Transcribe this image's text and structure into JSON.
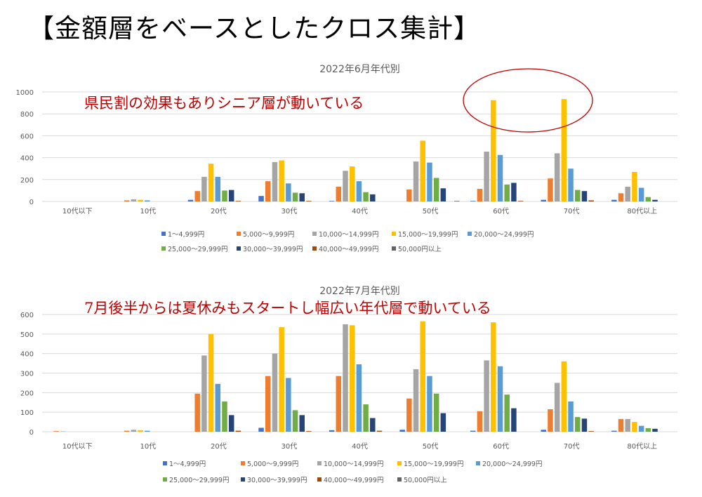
{
  "slide_title": "【金額層をベースとしたクロス集計】",
  "colors": [
    "#4472C4",
    "#ED7D31",
    "#A5A5A5",
    "#FFC000",
    "#5B9BD5",
    "#70AD47",
    "#264478",
    "#9E480E",
    "#636363"
  ],
  "annotation_color": "#C00000",
  "chart_data": [
    {
      "type": "bar",
      "title": "2022年6月年代別",
      "annotation": "県民割の効果もありシニア層が動いている",
      "highlight": "circle around 60代 and 70代 15,000〜19,999円 bars",
      "categories": [
        "10代以下",
        "10代",
        "20代",
        "30代",
        "40代",
        "50代",
        "60代",
        "70代",
        "80代以上"
      ],
      "ylim": [
        0,
        1000
      ],
      "yticks": [
        0,
        200,
        400,
        600,
        800,
        1000
      ],
      "grid": true,
      "legend": "bottom",
      "series": [
        {
          "name": "1〜4,999円",
          "values": [
            0,
            0,
            15,
            50,
            5,
            0,
            5,
            15,
            15
          ]
        },
        {
          "name": "5,000〜9,999円",
          "values": [
            0,
            10,
            95,
            185,
            135,
            110,
            115,
            210,
            75
          ]
        },
        {
          "name": "10,000〜14,999円",
          "values": [
            0,
            20,
            225,
            360,
            280,
            365,
            455,
            440,
            135
          ]
        },
        {
          "name": "15,000〜19,999円",
          "values": [
            0,
            15,
            345,
            375,
            320,
            555,
            925,
            935,
            270
          ]
        },
        {
          "name": "20,000〜24,999円",
          "values": [
            0,
            10,
            225,
            165,
            185,
            355,
            425,
            300,
            125
          ]
        },
        {
          "name": "25,000〜29,999円",
          "values": [
            0,
            0,
            100,
            80,
            85,
            215,
            155,
            105,
            40
          ]
        },
        {
          "name": "30,000〜39,999円",
          "values": [
            0,
            0,
            105,
            75,
            65,
            120,
            170,
            95,
            15
          ]
        },
        {
          "name": "40,000〜49,999円",
          "values": [
            0,
            0,
            5,
            5,
            0,
            0,
            5,
            10,
            0
          ]
        },
        {
          "name": "50,000円以上",
          "values": [
            0,
            0,
            0,
            0,
            0,
            5,
            0,
            0,
            0
          ]
        }
      ]
    },
    {
      "type": "bar",
      "title": "2022年7月年代別",
      "annotation": "7月後半からは夏休みもスタートし幅広い年代層で動いている",
      "categories": [
        "10代以下",
        "10代",
        "20代",
        "30代",
        "40代",
        "50代",
        "60代",
        "70代",
        "80代以上"
      ],
      "ylim": [
        0,
        600
      ],
      "yticks": [
        0,
        100,
        200,
        300,
        400,
        500,
        600
      ],
      "grid": true,
      "legend": "bottom",
      "series": [
        {
          "name": "1〜4,999円",
          "values": [
            0,
            0,
            0,
            20,
            8,
            10,
            5,
            10,
            5
          ]
        },
        {
          "name": "5,000〜9,999円",
          "values": [
            3,
            5,
            195,
            285,
            285,
            170,
            105,
            115,
            65
          ]
        },
        {
          "name": "10,000〜14,999円",
          "values": [
            2,
            10,
            390,
            400,
            550,
            320,
            365,
            250,
            65
          ]
        },
        {
          "name": "15,000〜19,999円",
          "values": [
            0,
            8,
            500,
            535,
            545,
            565,
            560,
            360,
            50
          ]
        },
        {
          "name": "20,000〜24,999円",
          "values": [
            0,
            5,
            245,
            275,
            345,
            285,
            335,
            155,
            30
          ]
        },
        {
          "name": "25,000〜29,999円",
          "values": [
            0,
            0,
            155,
            110,
            140,
            195,
            190,
            75,
            18
          ]
        },
        {
          "name": "30,000〜39,999円",
          "values": [
            0,
            0,
            85,
            85,
            70,
            95,
            120,
            67,
            15
          ]
        },
        {
          "name": "40,000〜49,999円",
          "values": [
            0,
            0,
            5,
            3,
            5,
            0,
            0,
            3,
            0
          ]
        },
        {
          "name": "50,000円以上",
          "values": [
            0,
            0,
            0,
            0,
            0,
            0,
            0,
            0,
            0
          ]
        }
      ]
    }
  ]
}
